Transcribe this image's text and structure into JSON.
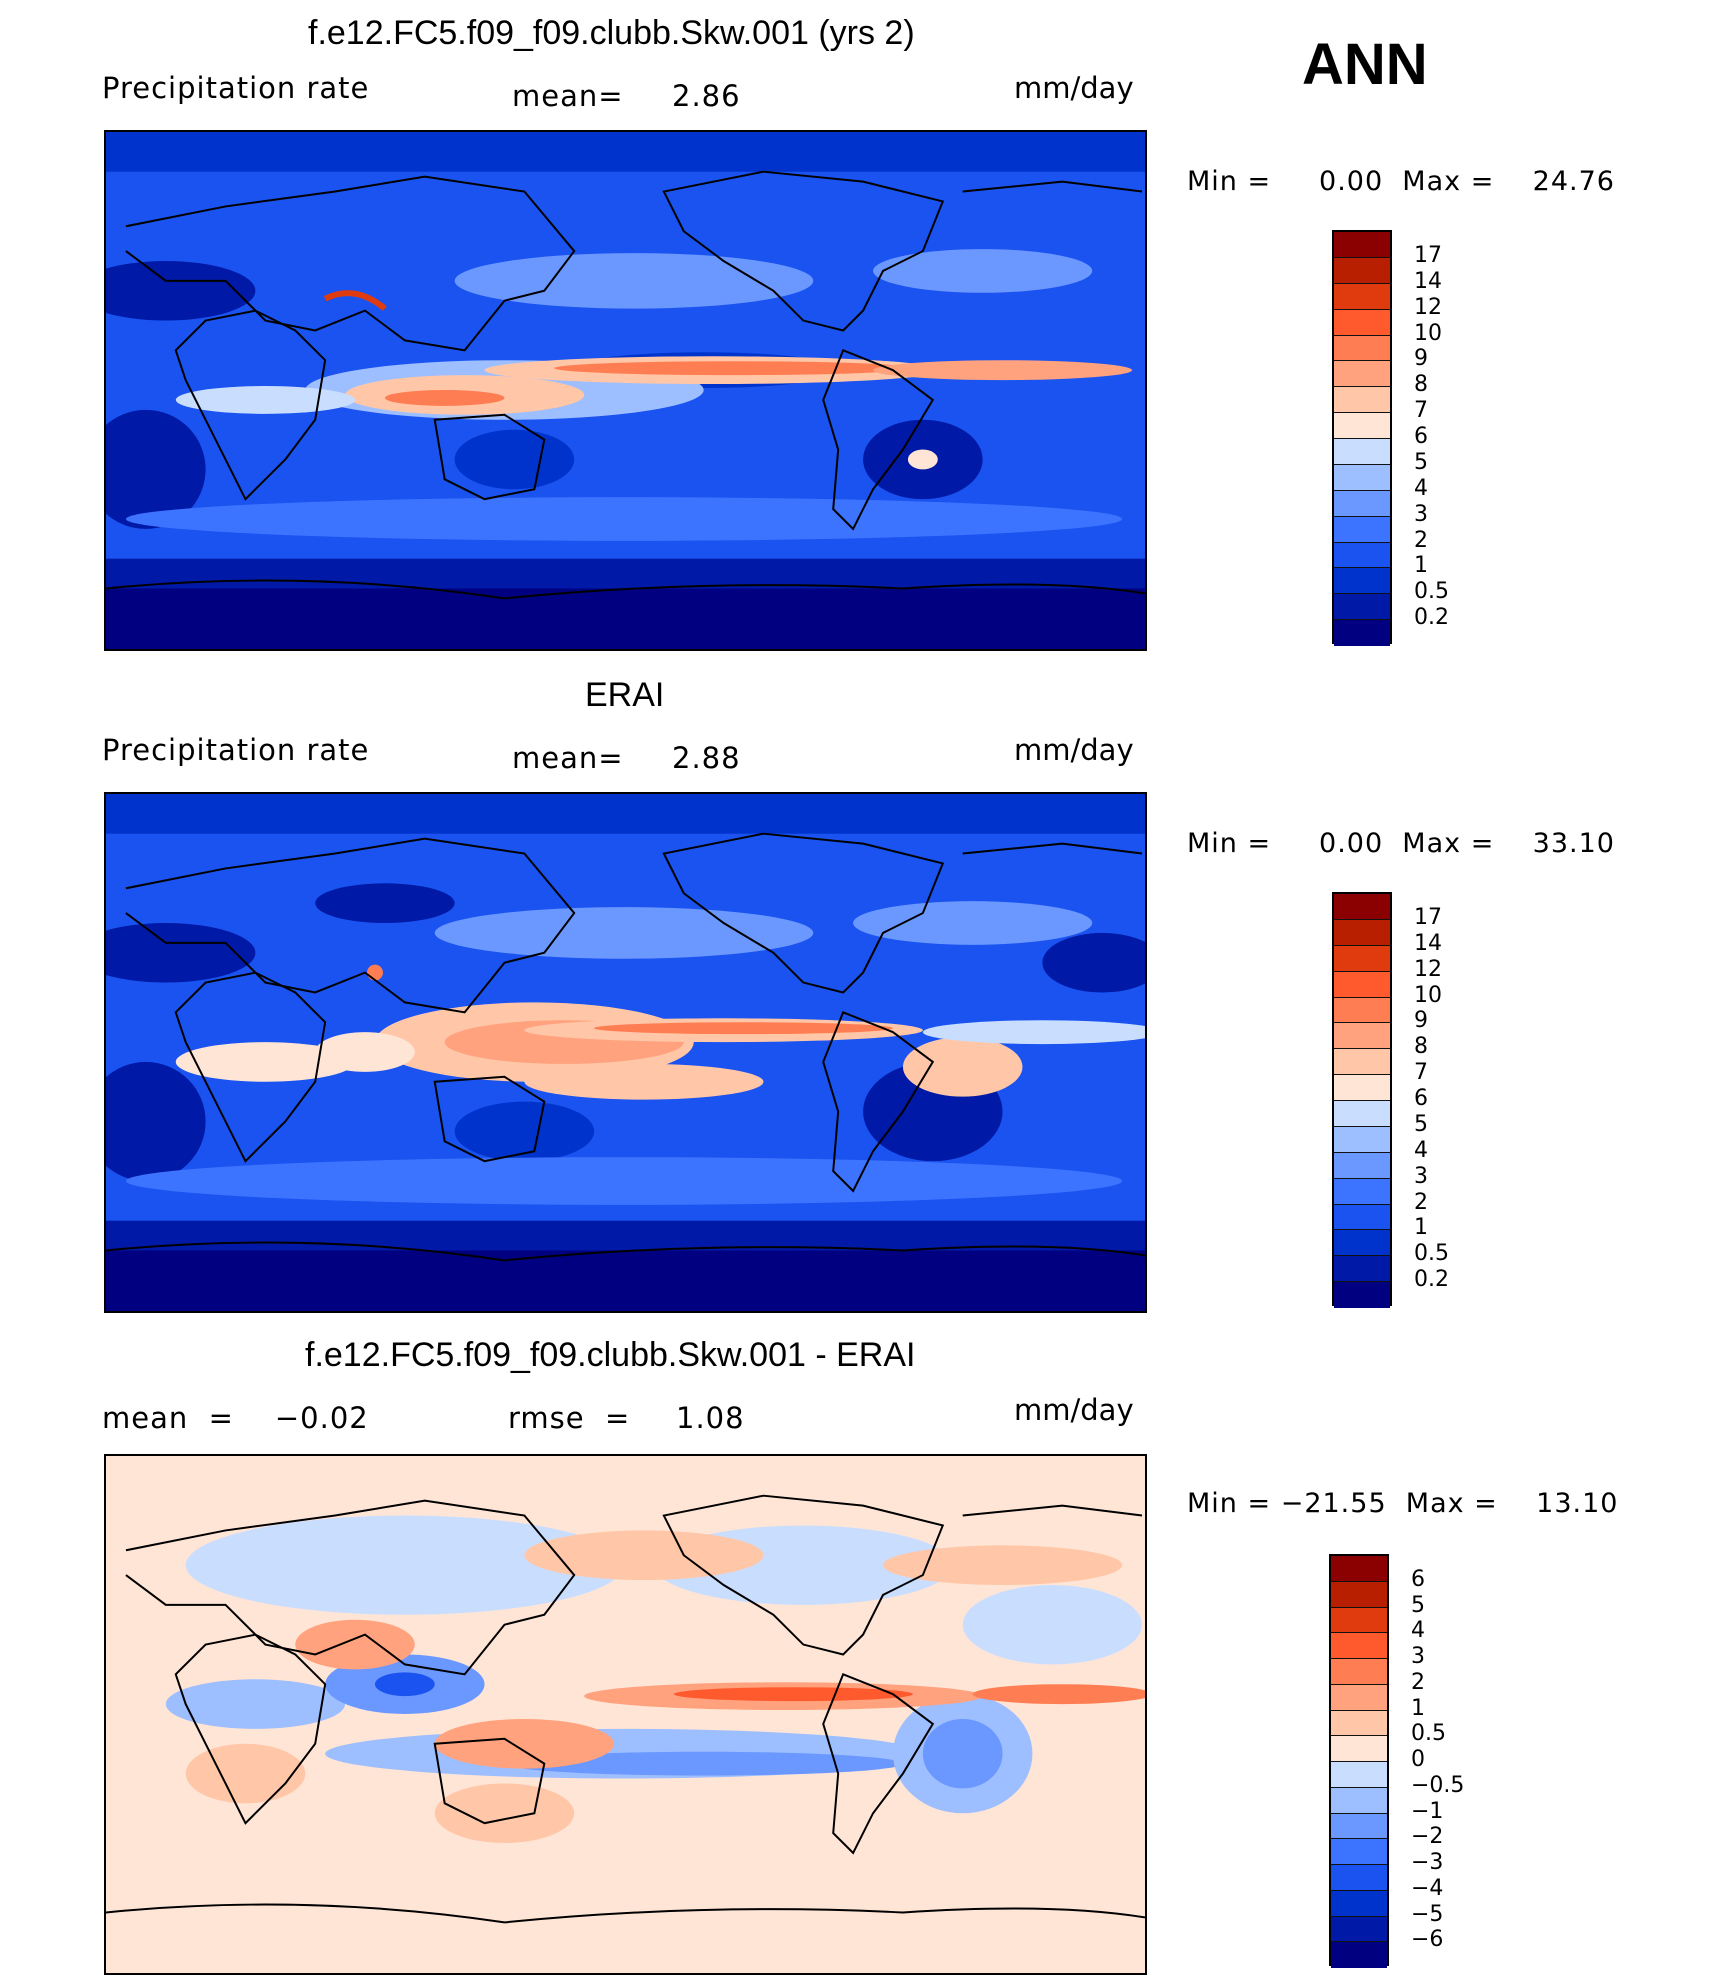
{
  "season": "ANN",
  "colors": {
    "precip": [
      "#000080",
      "#0019a6",
      "#0033cc",
      "#1a53f0",
      "#3d74ff",
      "#6b98ff",
      "#9dbeff",
      "#c9deff",
      "#ffe5d6",
      "#ffc7a8",
      "#ffa27d",
      "#ff7d52",
      "#ff5a2e",
      "#e03b0f",
      "#b81f00",
      "#8b0000"
    ],
    "diff": [
      "#000080",
      "#0019a6",
      "#0033cc",
      "#1a53f0",
      "#3d74ff",
      "#6b98ff",
      "#9dbeff",
      "#c9deff",
      "#ffe5d6",
      "#ffc7a8",
      "#ffa27d",
      "#ff7d52",
      "#ff5a2e",
      "#e03b0f",
      "#b81f00",
      "#8b0000"
    ]
  },
  "panels": [
    {
      "title": "f.e12.FC5.f09_f09.clubb.Skw.001 (yrs 2)",
      "left_label": "Precipitation rate",
      "mean_label": "mean=",
      "mean_value": "2.86",
      "units": "mm/day",
      "minmax": "Min =     0.00  Max =    24.76",
      "colorbar_labels": [
        "17",
        "14",
        "12",
        "10",
        "9",
        "8",
        "7",
        "6",
        "5",
        "4",
        "3",
        "2",
        "1",
        "0.5",
        "0.2"
      ]
    },
    {
      "title": "ERAI",
      "left_label": "Precipitation rate",
      "mean_label": "mean=",
      "mean_value": "2.88",
      "units": "mm/day",
      "minmax": "Min =     0.00  Max =    33.10",
      "colorbar_labels": [
        "17",
        "14",
        "12",
        "10",
        "9",
        "8",
        "7",
        "6",
        "5",
        "4",
        "3",
        "2",
        "1",
        "0.5",
        "0.2"
      ]
    },
    {
      "title": "f.e12.FC5.f09_f09.clubb.Skw.001 - ERAI",
      "left_label": "mean  =    −0.02",
      "mean_label": "rmse  =",
      "mean_value": "1.08",
      "units": "mm/day",
      "minmax": "Min = −21.55  Max =    13.10",
      "colorbar_labels": [
        "6",
        "5",
        "4",
        "3",
        "2",
        "1",
        "0.5",
        "0",
        "−0.5",
        "−1",
        "−2",
        "−3",
        "−4",
        "−5",
        "−6"
      ]
    }
  ]
}
